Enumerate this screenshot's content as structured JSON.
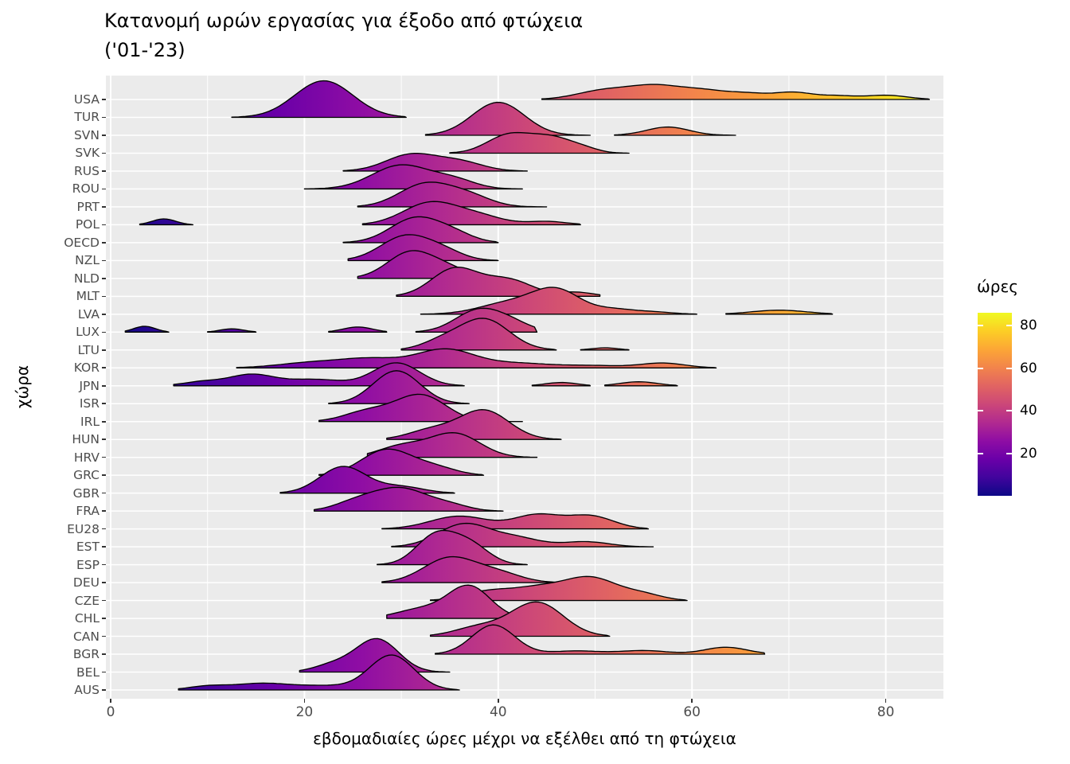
{
  "title": {
    "line1": "Κατανομή ωρών εργασίας για έξοδο από φτώχεια",
    "line2": "('01-'23)"
  },
  "y_axis": {
    "title": "χώρα"
  },
  "x_axis": {
    "title": "εβδομαδιαίες ώρες μέχρι να εξέλθει από τη φτώχεια",
    "ticks": [
      0,
      20,
      40,
      60,
      80
    ],
    "minor_ticks": [
      10,
      30,
      50,
      70
    ]
  },
  "legend": {
    "title": "ώρες",
    "tick_labels": [
      80,
      60,
      40,
      20
    ],
    "scale_domain": [
      0,
      86
    ]
  },
  "colors": {
    "panel_bg": "#EBEBEB",
    "gridline": "#FFFFFF",
    "outline": "#000000",
    "tick_mark": "#333333",
    "tick_label": "#4D4D4D",
    "title_text": "#000000",
    "plasma_stops": [
      [
        0.0,
        "#0d0887"
      ],
      [
        0.1,
        "#41049d"
      ],
      [
        0.2,
        "#6a00a8"
      ],
      [
        0.3,
        "#8f0da4"
      ],
      [
        0.4,
        "#b12a90"
      ],
      [
        0.5,
        "#cc4778"
      ],
      [
        0.6,
        "#e16462"
      ],
      [
        0.7,
        "#f2844b"
      ],
      [
        0.8,
        "#fca636"
      ],
      [
        0.9,
        "#fcce25"
      ],
      [
        1.0,
        "#f0f921"
      ]
    ]
  },
  "chart_data": {
    "type": "area",
    "subtype": "ridgeline-density",
    "title": "Κατανομή ωρών εργασίας για έξοδο από φτώχεια ('01-'23)",
    "xlabel": "εβδομαδιαίες ώρες μέχρι να εξέλθει από τη φτώχεια",
    "ylabel": "χώρα",
    "xlim": [
      -0.5,
      86
    ],
    "x_ticks": [
      0,
      20,
      40,
      60,
      80
    ],
    "grid": "white on grey panel",
    "legend_position": "right",
    "fill_encoding": "plasma gradient mapped to weekly hours (x)",
    "peak_format": "[center_hours, sd_hours, height_in_row_units]",
    "countries": [
      {
        "code": "USA",
        "segments": [
          {
            "x_range": [
              44.5,
              84.5
            ],
            "peaks": [
              [
                51,
                2.8,
                0.5
              ],
              [
                56,
                2.5,
                0.62
              ],
              [
                61,
                2.8,
                0.5
              ],
              [
                66,
                2,
                0.25
              ],
              [
                70.5,
                2,
                0.38
              ],
              [
                75,
                1.8,
                0.18
              ],
              [
                80,
                2.2,
                0.23
              ]
            ]
          }
        ]
      },
      {
        "code": "TUR",
        "segments": [
          {
            "x_range": [
              12.5,
              30.5
            ],
            "peaks": [
              [
                22,
                3,
                2.0
              ]
            ]
          }
        ]
      },
      {
        "code": "SVN",
        "segments": [
          {
            "x_range": [
              32.5,
              49.5
            ],
            "peaks": [
              [
                40,
                2.7,
                1.8
              ]
            ]
          },
          {
            "x_range": [
              52,
              64.5
            ],
            "peaks": [
              [
                57.5,
                2.2,
                0.45
              ]
            ]
          }
        ]
      },
      {
        "code": "SVK",
        "segments": [
          {
            "x_range": [
              35,
              53.5
            ],
            "peaks": [
              [
                41,
                2.2,
                0.95
              ],
              [
                45.5,
                2.3,
                0.85
              ],
              [
                49,
                1.5,
                0.15
              ]
            ]
          }
        ]
      },
      {
        "code": "RUS",
        "segments": [
          {
            "x_range": [
              24,
              43
            ],
            "peaks": [
              [
                31,
                2.6,
                0.9
              ],
              [
                36,
                2.4,
                0.5
              ]
            ]
          }
        ]
      },
      {
        "code": "ROU",
        "segments": [
          {
            "x_range": [
              20,
              42.5
            ],
            "peaks": [
              [
                30,
                3,
                1.3
              ],
              [
                35.5,
                2.2,
                0.45
              ]
            ]
          }
        ]
      },
      {
        "code": "PRT",
        "segments": [
          {
            "x_range": [
              25.5,
              45
            ],
            "peaks": [
              [
                32.5,
                2.7,
                1.25
              ],
              [
                37,
                2.3,
                0.55
              ]
            ]
          }
        ]
      },
      {
        "code": "POL",
        "segments": [
          {
            "x_range": [
              3,
              8.5
            ],
            "peaks": [
              [
                5.5,
                1.2,
                0.32
              ]
            ]
          },
          {
            "x_range": [
              26,
              48.5
            ],
            "peaks": [
              [
                33,
                2.8,
                1.2
              ],
              [
                38,
                2.5,
                0.45
              ],
              [
                45,
                2,
                0.18
              ]
            ]
          }
        ]
      },
      {
        "code": "OECD",
        "segments": [
          {
            "x_range": [
              24,
              40
            ],
            "peaks": [
              [
                31.5,
                2.6,
                1.35
              ],
              [
                35.5,
                2,
                0.4
              ]
            ]
          }
        ]
      },
      {
        "code": "NZL",
        "segments": [
          {
            "x_range": [
              24.5,
              40
            ],
            "peaks": [
              [
                30.5,
                2.6,
                1.35
              ],
              [
                34.5,
                2,
                0.4
              ]
            ]
          }
        ]
      },
      {
        "code": "NLD",
        "segments": [
          {
            "x_range": [
              25.5,
              39.5
            ],
            "peaks": [
              [
                31,
                2.4,
                1.45
              ],
              [
                35,
                2,
                0.45
              ]
            ]
          }
        ]
      },
      {
        "code": "MLT",
        "segments": [
          {
            "x_range": [
              29.5,
              50.5
            ],
            "peaks": [
              [
                35.5,
                2.4,
                1.5
              ],
              [
                41,
                2.5,
                0.9
              ],
              [
                48,
                1.8,
                0.22
              ]
            ]
          }
        ]
      },
      {
        "code": "LVA",
        "segments": [
          {
            "x_range": [
              32,
              60.5
            ],
            "peaks": [
              [
                41,
                3,
                0.6
              ],
              [
                46,
                2.5,
                1.3
              ],
              [
                52,
                2,
                0.25
              ],
              [
                56,
                2,
                0.12
              ]
            ]
          },
          {
            "x_range": [
              63.5,
              74.5
            ],
            "peaks": [
              [
                69,
                2.8,
                0.22
              ]
            ]
          }
        ]
      },
      {
        "code": "LUX",
        "segments": [
          {
            "x_range": [
              1.5,
              6
            ],
            "peaks": [
              [
                3.5,
                1.1,
                0.32
              ]
            ]
          },
          {
            "x_range": [
              10,
              15
            ],
            "peaks": [
              [
                12.5,
                1.2,
                0.18
              ]
            ]
          },
          {
            "x_range": [
              22.5,
              28.5
            ],
            "peaks": [
              [
                25.5,
                1.5,
                0.28
              ]
            ]
          },
          {
            "x_range": [
              31.5,
              44
            ],
            "peaks": [
              [
                38,
                2.4,
                1.2
              ],
              [
                41.5,
                2,
                0.4
              ]
            ]
          }
        ]
      },
      {
        "code": "LTU",
        "segments": [
          {
            "x_range": [
              30,
              46
            ],
            "peaks": [
              [
                34,
                2,
                0.4
              ],
              [
                38.5,
                2.6,
                1.7
              ]
            ]
          },
          {
            "x_range": [
              48.5,
              53.5
            ],
            "peaks": [
              [
                51,
                1.3,
                0.12
              ]
            ]
          }
        ]
      },
      {
        "code": "KOR",
        "segments": [
          {
            "x_range": [
              13,
              62.5
            ],
            "peaks": [
              [
                21,
                3.5,
                0.3
              ],
              [
                27,
                3,
                0.45
              ],
              [
                34.5,
                3,
                1.0
              ],
              [
                42,
                3.5,
                0.25
              ],
              [
                50,
                3,
                0.12
              ],
              [
                57,
                2.3,
                0.26
              ]
            ]
          }
        ]
      },
      {
        "code": "JPN",
        "segments": [
          {
            "x_range": [
              6.5,
              36.5
            ],
            "peaks": [
              [
                9.5,
                2,
                0.22
              ],
              [
                14.5,
                2.3,
                0.6
              ],
              [
                21,
                3,
                0.35
              ],
              [
                29.5,
                2.4,
                1.25
              ]
            ]
          },
          {
            "x_range": [
              43.5,
              49.5
            ],
            "peaks": [
              [
                46.5,
                1.6,
                0.18
              ]
            ]
          },
          {
            "x_range": [
              51,
              58.5
            ],
            "peaks": [
              [
                54.5,
                1.9,
                0.22
              ]
            ]
          }
        ]
      },
      {
        "code": "ISR",
        "segments": [
          {
            "x_range": [
              22.5,
              37
            ],
            "peaks": [
              [
                29.5,
                2.4,
                1.8
              ]
            ]
          }
        ]
      },
      {
        "code": "IRL",
        "segments": [
          {
            "x_range": [
              21.5,
              42.5
            ],
            "peaks": [
              [
                26.5,
                2.4,
                0.55
              ],
              [
                32,
                2.6,
                1.45
              ]
            ]
          }
        ]
      },
      {
        "code": "HUN",
        "segments": [
          {
            "x_range": [
              28.5,
              46.5
            ],
            "peaks": [
              [
                33,
                2.3,
                0.5
              ],
              [
                38.5,
                2.6,
                1.6
              ]
            ]
          }
        ]
      },
      {
        "code": "HRV",
        "segments": [
          {
            "x_range": [
              26.5,
              44
            ],
            "peaks": [
              [
                30,
                2.4,
                0.6
              ],
              [
                35.5,
                2.6,
                1.3
              ]
            ]
          }
        ]
      },
      {
        "code": "GRC",
        "segments": [
          {
            "x_range": [
              21.5,
              38.5
            ],
            "peaks": [
              [
                28.5,
                2.6,
                1.4
              ],
              [
                33.5,
                2.2,
                0.4
              ]
            ]
          }
        ]
      },
      {
        "code": "GBR",
        "segments": [
          {
            "x_range": [
              17.5,
              35.5
            ],
            "peaks": [
              [
                24,
                2.4,
                1.45
              ],
              [
                30,
                2.3,
                0.35
              ]
            ]
          }
        ]
      },
      {
        "code": "FRA",
        "segments": [
          {
            "x_range": [
              21,
              40.5
            ],
            "peaks": [
              [
                25.5,
                2.3,
                0.5
              ],
              [
                30,
                2.7,
                1.2
              ],
              [
                35,
                2,
                0.3
              ]
            ]
          }
        ]
      },
      {
        "code": "EU28",
        "segments": [
          {
            "x_range": [
              28,
              55.5
            ],
            "peaks": [
              [
                36,
                3,
                0.7
              ],
              [
                44,
                2.4,
                0.75
              ],
              [
                49.5,
                2.4,
                0.7
              ]
            ]
          }
        ]
      },
      {
        "code": "EST",
        "segments": [
          {
            "x_range": [
              29,
              56
            ],
            "peaks": [
              [
                36.5,
                2.7,
                1.25
              ],
              [
                42,
                2.4,
                0.45
              ],
              [
                49,
                2.4,
                0.28
              ]
            ]
          }
        ]
      },
      {
        "code": "ESP",
        "segments": [
          {
            "x_range": [
              27.5,
              43
            ],
            "peaks": [
              [
                33.5,
                2,
                1.55
              ],
              [
                37,
                2,
                1.1
              ]
            ]
          }
        ]
      },
      {
        "code": "DEU",
        "segments": [
          {
            "x_range": [
              28,
              46.5
            ],
            "peaks": [
              [
                35,
                2.7,
                1.35
              ],
              [
                40,
                2.4,
                0.5
              ]
            ]
          }
        ]
      },
      {
        "code": "CZE",
        "segments": [
          {
            "x_range": [
              33,
              59.5
            ],
            "peaks": [
              [
                39,
                2.5,
                0.5
              ],
              [
                44,
                2.5,
                0.6
              ],
              [
                49.5,
                2.8,
                1.25
              ],
              [
                55,
                2,
                0.3
              ]
            ]
          }
        ]
      },
      {
        "code": "CHL",
        "segments": [
          {
            "x_range": [
              28.5,
              41.5
            ],
            "peaks": [
              [
                32,
                2.5,
                0.5
              ],
              [
                37,
                2.2,
                1.75
              ]
            ]
          }
        ]
      },
      {
        "code": "CAN",
        "segments": [
          {
            "x_range": [
              33,
              51.5
            ],
            "peaks": [
              [
                38,
                2.5,
                0.5
              ],
              [
                44,
                2.7,
                1.85
              ]
            ]
          }
        ]
      },
      {
        "code": "BGR",
        "segments": [
          {
            "x_range": [
              33.5,
              67.5
            ],
            "peaks": [
              [
                39.5,
                2.2,
                1.6
              ],
              [
                48,
                2.5,
                0.18
              ],
              [
                55,
                2.5,
                0.2
              ],
              [
                63.5,
                2.2,
                0.38
              ]
            ]
          }
        ]
      },
      {
        "code": "BEL",
        "segments": [
          {
            "x_range": [
              19.5,
              35
            ],
            "peaks": [
              [
                23,
                2,
                0.4
              ],
              [
                27.5,
                2.2,
                1.8
              ]
            ]
          }
        ]
      },
      {
        "code": "AUS",
        "segments": [
          {
            "x_range": [
              7,
              36
            ],
            "peaks": [
              [
                10,
                2,
                0.2
              ],
              [
                15.5,
                2.8,
                0.35
              ],
              [
                22,
                3,
                0.22
              ],
              [
                29,
                2.3,
                1.9
              ]
            ]
          }
        ]
      }
    ]
  }
}
